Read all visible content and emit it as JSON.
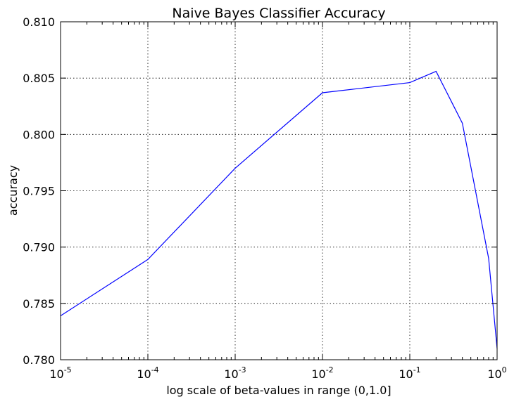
{
  "chart_data": {
    "type": "line",
    "title": "Naive Bayes Classifier Accuracy",
    "xlabel": "log scale of beta-values in range (0,1.0]",
    "ylabel": "accuracy",
    "xscale": "log",
    "xlim": [
      1e-05,
      1
    ],
    "ylim": [
      0.78,
      0.81
    ],
    "grid": true,
    "grid_style": "dotted",
    "x_ticks": [
      {
        "value": 1e-05,
        "base": "10",
        "exp": "-5"
      },
      {
        "value": 0.0001,
        "base": "10",
        "exp": "-4"
      },
      {
        "value": 0.001,
        "base": "10",
        "exp": "-3"
      },
      {
        "value": 0.01,
        "base": "10",
        "exp": "-2"
      },
      {
        "value": 0.1,
        "base": "10",
        "exp": "-1"
      },
      {
        "value": 1,
        "base": "10",
        "exp": "0"
      }
    ],
    "y_ticks": [
      {
        "value": 0.78,
        "label": "0.780"
      },
      {
        "value": 0.785,
        "label": "0.785"
      },
      {
        "value": 0.79,
        "label": "0.790"
      },
      {
        "value": 0.795,
        "label": "0.795"
      },
      {
        "value": 0.8,
        "label": "0.800"
      },
      {
        "value": 0.805,
        "label": "0.805"
      },
      {
        "value": 0.81,
        "label": "0.810"
      }
    ],
    "series": [
      {
        "color": "#0000ff",
        "x": [
          1e-05,
          0.0001,
          0.001,
          0.01,
          0.1,
          0.2,
          0.4,
          0.8,
          1.0
        ],
        "y": [
          0.7839,
          0.7889,
          0.797,
          0.8037,
          0.8046,
          0.8056,
          0.801,
          0.789,
          0.781
        ]
      }
    ]
  }
}
